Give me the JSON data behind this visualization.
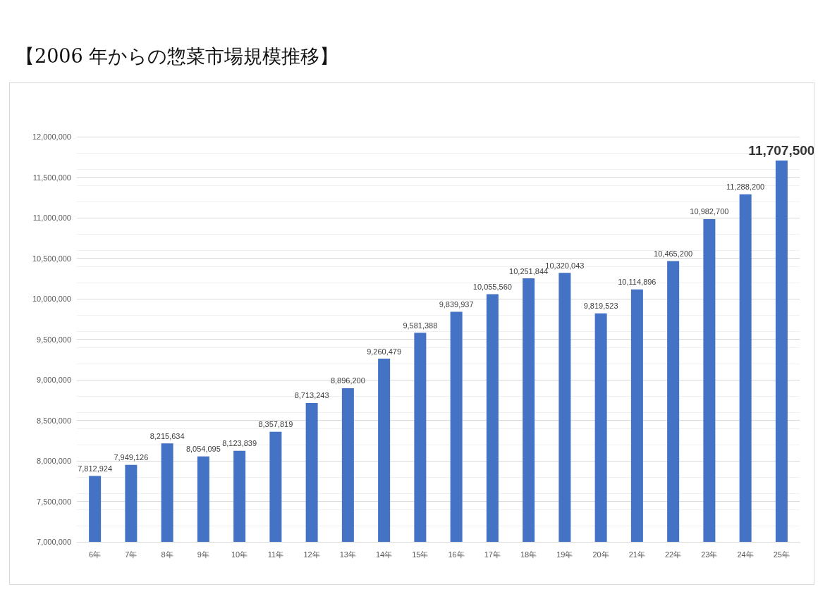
{
  "chart_data": {
    "type": "bar",
    "title": "【2006 年からの惣菜市場規模推移】",
    "categories": [
      "6年",
      "7年",
      "8年",
      "9年",
      "10年",
      "11年",
      "12年",
      "13年",
      "14年",
      "15年",
      "16年",
      "17年",
      "18年",
      "19年",
      "20年",
      "21年",
      "22年",
      "23年",
      "24年",
      "25年"
    ],
    "values": [
      7812924,
      7949126,
      8215634,
      8054095,
      8123839,
      8357819,
      8713243,
      8896200,
      9260479,
      9581388,
      9839937,
      10055560,
      10251844,
      10320043,
      9819523,
      10114896,
      10465200,
      10982700,
      11288200,
      11707500
    ],
    "value_labels": [
      "7,812,924",
      "7,949,126",
      "8,215,634",
      "8,054,095",
      "8,123,839",
      "8,357,819",
      "8,713,243",
      "8,896,200",
      "9,260,479",
      "9,581,388",
      "9,839,937",
      "10,055,560",
      "10,251,844",
      "10,320,043",
      "9,819,523",
      "10,114,896",
      "10,465,200",
      "10,982,700",
      "11,288,200",
      "11,707,500"
    ],
    "color": "#4472c4",
    "ylim": [
      7000000,
      12000000
    ],
    "yticks": [
      {
        "value": 7000000,
        "label": "7,000,000"
      },
      {
        "value": 7500000,
        "label": "7,500,000"
      },
      {
        "value": 8000000,
        "label": "8,000,000"
      },
      {
        "value": 8500000,
        "label": "8,500,000"
      },
      {
        "value": 9000000,
        "label": "9,000,000"
      },
      {
        "value": 9500000,
        "label": "9,500,000"
      },
      {
        "value": 10000000,
        "label": "10,000,000"
      },
      {
        "value": 10500000,
        "label": "10,500,000"
      },
      {
        "value": 11000000,
        "label": "11,000,000"
      },
      {
        "value": 11500000,
        "label": "11,500,000"
      },
      {
        "value": 12000000,
        "label": "12,000,000"
      }
    ],
    "grid": "y"
  }
}
